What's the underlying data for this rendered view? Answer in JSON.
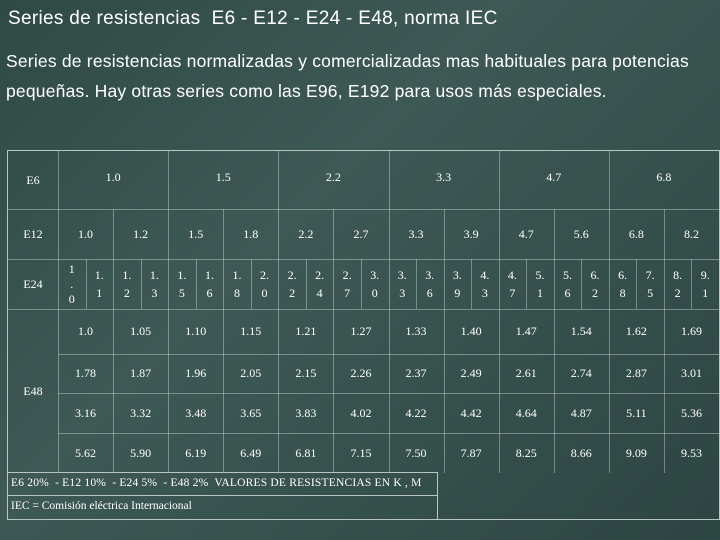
{
  "title": "Series de resistencias  E6 - E12 - E24 - E48, norma IEC",
  "intro": "Series de resistencias normalizadas y comercializadas mas habituales para potencias pequeñas. Hay otras series como las  E96, E192  para usos más especiales.",
  "table": {
    "e6": {
      "label": "E6",
      "values": [
        "1.0",
        "1.5",
        "2.2",
        "3.3",
        "4.7",
        "6.8"
      ]
    },
    "e12": {
      "label": "E12",
      "values": [
        "1.0",
        "1.2",
        "1.5",
        "1.8",
        "2.2",
        "2.7",
        "3.3",
        "3.9",
        "4.7",
        "5.6",
        "6.8",
        "8.2"
      ]
    },
    "e24": {
      "label": "E24",
      "values": [
        [
          "1",
          ".",
          "0"
        ],
        [
          "1.",
          "1"
        ],
        [
          "1.",
          "2"
        ],
        [
          "1.",
          "3"
        ],
        [
          "1.",
          "5"
        ],
        [
          "1.",
          "6"
        ],
        [
          "1.",
          "8"
        ],
        [
          "2.",
          "0"
        ],
        [
          "2.",
          "2"
        ],
        [
          "2.",
          "4"
        ],
        [
          "2.",
          "7"
        ],
        [
          "3.",
          "0"
        ],
        [
          "3.",
          "3"
        ],
        [
          "3.",
          "6"
        ],
        [
          "3.",
          "9"
        ],
        [
          "4.",
          "3"
        ],
        [
          "4.",
          "7"
        ],
        [
          "5.",
          "1"
        ],
        [
          "5.",
          "6"
        ],
        [
          "6.",
          "2"
        ],
        [
          "6.",
          "8"
        ],
        [
          "7.",
          "5"
        ],
        [
          "8.",
          "2"
        ],
        [
          "9.",
          "1"
        ]
      ]
    },
    "e48": {
      "label": "E48",
      "rows": [
        [
          "1.0",
          "1.05",
          "1.10",
          "1.15",
          "1.21",
          "1.27",
          "1.33",
          "1.40",
          "1.47",
          "1.54",
          "1.62",
          "1.69"
        ],
        [
          "1.78",
          "1.87",
          "1.96",
          "2.05",
          "2.15",
          "2.26",
          "2.37",
          "2.49",
          "2.61",
          "2.74",
          "2.87",
          "3.01"
        ],
        [
          "3.16",
          "3.32",
          "3.48",
          "3.65",
          "3.83",
          "4.02",
          "4.22",
          "4.42",
          "4.64",
          "4.87",
          "5.11",
          "5.36"
        ],
        [
          "5.62",
          "5.90",
          "6.19",
          "6.49",
          "6.81",
          "7.15",
          "7.50",
          "7.87",
          "8.25",
          "8.66",
          "9.09",
          "9.53"
        ]
      ]
    }
  },
  "footer": {
    "tolerances": "E6 20%  - E12 10%  - E24 5%  - E48 2%  VALORES DE RESISTENCIAS EN K , M",
    "iec": "IEC = Comisión eléctrica Internacional"
  },
  "colors": {
    "background": "#3a5450",
    "text": "#ffffff",
    "grid": "#b8c6c2"
  }
}
